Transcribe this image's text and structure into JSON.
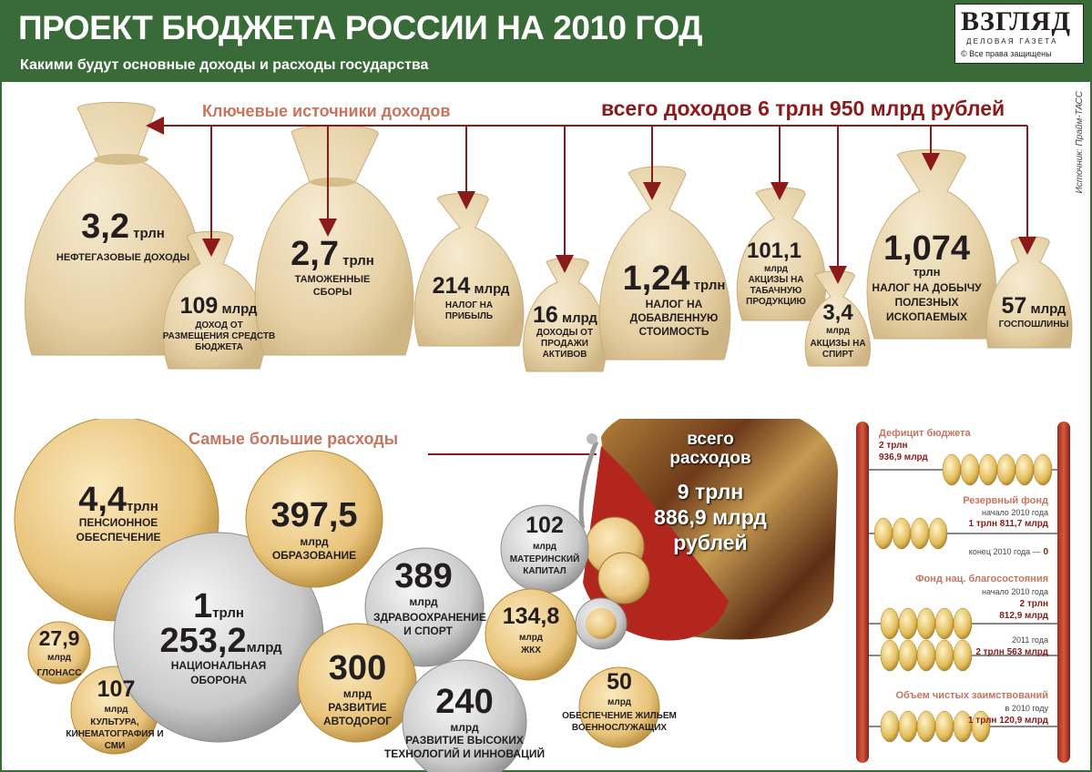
{
  "header": {
    "title": "ПРОЕКТ БЮДЖЕТА РОССИИ НА 2010 ГОД",
    "subtitle": "Какими будут основные доходы и расходы государства",
    "logo_name": "ВЗГЛЯД",
    "logo_tag": "ДЕЛОВАЯ ГАЗЕТА",
    "logo_rights": "Все права защищены"
  },
  "source": "Источник: Прайм-ТАСС",
  "income": {
    "title": "Ключевые источники доходов",
    "total": "всего доходов 6 трлн 950 млрд рублей",
    "bags": [
      {
        "num": "3,2",
        "unit": "трлн",
        "label": "НЕФТЕГАЗОВЫЕ ДОХОДЫ"
      },
      {
        "num": "109",
        "unit": "млрд",
        "label": "ДОХОД ОТ РАЗМЕЩЕНИЯ СРЕДСТВ БЮДЖЕТА"
      },
      {
        "num": "2,7",
        "unit": "трлн",
        "label": "ТАМОЖЕННЫЕ СБОРЫ"
      },
      {
        "num": "214",
        "unit": "млрд",
        "label": "НАЛОГ НА ПРИБЫЛЬ"
      },
      {
        "num": "16",
        "unit": "млрд",
        "label": "ДОХОДЫ ОТ ПРОДАЖИ АКТИВОВ"
      },
      {
        "num": "1,24",
        "unit": "трлн",
        "label": "НАЛОГ НА ДОБАВЛЕННУЮ СТОИМОСТЬ"
      },
      {
        "num": "101,1",
        "unit": "млрд",
        "label": "АКЦИЗЫ НА ТАБАЧНУЮ ПРОДУКЦИЮ"
      },
      {
        "num": "3,4",
        "unit": "млрд",
        "label": "АКЦИЗЫ НА СПИРТ"
      },
      {
        "num": "1,074",
        "unit": "трлн",
        "label": "НАЛОГ НА ДОБЫЧУ ПОЛЕЗНЫХ ИСКОПАЕМЫХ"
      },
      {
        "num": "57",
        "unit": "млрд",
        "label": "ГОСПОШЛИНЫ"
      }
    ]
  },
  "expenses": {
    "title": "Самые большие расходы",
    "total_lines": [
      "всего",
      "расходов",
      "9 трлн",
      "886,9 млрд",
      "рублей"
    ],
    "coins": [
      {
        "num": "4,4",
        "unit": "трлн",
        "label": "ПЕНСИОННОЕ ОБЕСПЕЧЕНИЕ"
      },
      {
        "num": "397,5",
        "unit": "млрд",
        "label": "ОБРАЗОВАНИЕ"
      },
      {
        "num": "1",
        "unit": "трлн",
        "num2": "253,2",
        "unit2": "млрд",
        "label": "НАЦИОНАЛЬНАЯ ОБОРОНА"
      },
      {
        "num": "389",
        "unit": "млрд",
        "label": "ЗДРАВООХРАНЕНИЕ И СПОРТ"
      },
      {
        "num": "27,9",
        "unit": "млрд",
        "label": "ГЛОНАСС"
      },
      {
        "num": "300",
        "unit": "млрд",
        "label": "РАЗВИТИЕ АВТОДОРОГ"
      },
      {
        "num": "107",
        "unit": "млрд",
        "label": "КУЛЬТУРА, КИНЕМАТОГРАФИЯ И СМИ"
      },
      {
        "num": "240",
        "unit": "млрд",
        "label": "РАЗВИТИЕ ВЫСОКИХ ТЕХНОЛОГИЙ И ИННОВАЦИЙ"
      },
      {
        "num": "102",
        "unit": "млрд",
        "label": "МАТЕРИНСКИЙ КАПИТАЛ"
      },
      {
        "num": "134,8",
        "unit": "млрд",
        "label": "ЖКХ"
      },
      {
        "num": "50",
        "unit": "млрд",
        "label": "ОБЕСПЕЧЕНИЕ ЖИЛЬЕМ ВОЕННОСЛУЖАЩИХ"
      }
    ]
  },
  "abacus": {
    "deficit": {
      "title": "Дефицит бюджета",
      "line1": "2 трлн",
      "line2": "936,9 млрд"
    },
    "reserve": {
      "title": "Резервный фонд",
      "start_label": "начало 2010 года",
      "start_value": "1 трлн 811,7 млрд",
      "end_label": "конец 2010 года —",
      "end_value": "0"
    },
    "welfare": {
      "title": "Фонд нац. благосостояния",
      "start_label": "начало 2010 года",
      "start_v1": "2 трлн",
      "start_v2": "812,9 млрд",
      "y2011_label": "2011 года",
      "y2011_value": "2 трлн 563 млрд"
    },
    "borrowing": {
      "title": "Объем чистых заимствований",
      "year_label": "в 2010 году",
      "value": "1 трлн 120,9 млрд"
    }
  },
  "colors": {
    "header_green": "#386b37",
    "accent_red": "#8b1a1a",
    "section_pink": "#c7755f",
    "bag": "#e9d6ad",
    "gold": "#e8c37a",
    "silver": "#c9c9c9"
  }
}
